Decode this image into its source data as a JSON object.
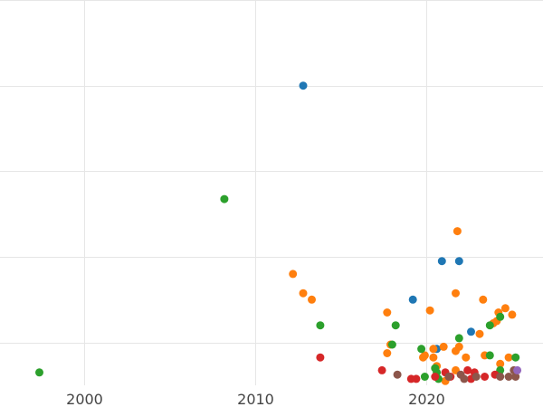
{
  "chart_data": {
    "type": "scatter",
    "title": "",
    "xlabel": "",
    "ylabel": "",
    "xlim": [
      1995.1,
      2026.8
    ],
    "ylim": [
      0,
      9
    ],
    "grid": true,
    "legend": "none",
    "x_ticks": [
      {
        "value": 2000,
        "label": "2000"
      },
      {
        "value": 2010,
        "label": "2010"
      },
      {
        "value": 2020,
        "label": "2020"
      }
    ],
    "y_gridlines": [
      1.0,
      3.0,
      5.0,
      7.0,
      9.0
    ],
    "series": [
      {
        "name": "blue",
        "color": "#1f77b4",
        "points": [
          {
            "x": 2012.8,
            "y": 7.0
          },
          {
            "x": 2019.2,
            "y": 2.0
          },
          {
            "x": 2020.6,
            "y": 0.85
          },
          {
            "x": 2020.9,
            "y": 2.9
          },
          {
            "x": 2021.9,
            "y": 2.9
          },
          {
            "x": 2022.6,
            "y": 1.25
          }
        ]
      },
      {
        "name": "orange",
        "color": "#ff7f0e",
        "points": [
          {
            "x": 2012.2,
            "y": 2.6
          },
          {
            "x": 2012.8,
            "y": 2.15
          },
          {
            "x": 2013.3,
            "y": 2.0
          },
          {
            "x": 2017.7,
            "y": 1.7
          },
          {
            "x": 2017.7,
            "y": 0.75
          },
          {
            "x": 2017.9,
            "y": 0.95
          },
          {
            "x": 2019.8,
            "y": 0.65
          },
          {
            "x": 2019.9,
            "y": 0.7
          },
          {
            "x": 2020.2,
            "y": 1.75
          },
          {
            "x": 2020.4,
            "y": 0.85
          },
          {
            "x": 2020.4,
            "y": 0.65
          },
          {
            "x": 2020.6,
            "y": 0.45
          },
          {
            "x": 2021.0,
            "y": 0.9
          },
          {
            "x": 2021.1,
            "y": 0.1
          },
          {
            "x": 2021.7,
            "y": 0.35
          },
          {
            "x": 2021.7,
            "y": 0.8
          },
          {
            "x": 2021.7,
            "y": 2.15
          },
          {
            "x": 2021.8,
            "y": 3.6
          },
          {
            "x": 2021.9,
            "y": 0.9
          },
          {
            "x": 2022.3,
            "y": 0.65
          },
          {
            "x": 2023.1,
            "y": 1.2
          },
          {
            "x": 2023.3,
            "y": 2.0
          },
          {
            "x": 2023.4,
            "y": 0.7
          },
          {
            "x": 2023.9,
            "y": 1.45
          },
          {
            "x": 2024.1,
            "y": 1.5
          },
          {
            "x": 2024.2,
            "y": 1.7
          },
          {
            "x": 2024.3,
            "y": 0.5
          },
          {
            "x": 2024.6,
            "y": 1.8
          },
          {
            "x": 2024.8,
            "y": 0.65
          },
          {
            "x": 2025.0,
            "y": 1.65
          }
        ]
      },
      {
        "name": "green",
        "color": "#2ca02c",
        "points": [
          {
            "x": 1997.4,
            "y": 0.3
          },
          {
            "x": 2008.2,
            "y": 4.35
          },
          {
            "x": 2013.8,
            "y": 1.4
          },
          {
            "x": 2018.0,
            "y": 0.95
          },
          {
            "x": 2018.2,
            "y": 1.4
          },
          {
            "x": 2019.7,
            "y": 0.85
          },
          {
            "x": 2019.9,
            "y": 0.2
          },
          {
            "x": 2020.5,
            "y": 0.4
          },
          {
            "x": 2020.6,
            "y": 0.3
          },
          {
            "x": 2020.7,
            "y": 0.15
          },
          {
            "x": 2021.9,
            "y": 1.1
          },
          {
            "x": 2023.7,
            "y": 1.4
          },
          {
            "x": 2023.7,
            "y": 0.7
          },
          {
            "x": 2024.3,
            "y": 1.6
          },
          {
            "x": 2024.3,
            "y": 0.35
          },
          {
            "x": 2025.2,
            "y": 0.65
          }
        ]
      },
      {
        "name": "red",
        "color": "#d62728",
        "points": [
          {
            "x": 2013.8,
            "y": 0.65
          },
          {
            "x": 2017.4,
            "y": 0.35
          },
          {
            "x": 2019.1,
            "y": 0.15
          },
          {
            "x": 2019.4,
            "y": 0.15
          },
          {
            "x": 2020.5,
            "y": 0.2
          },
          {
            "x": 2021.1,
            "y": 0.3
          },
          {
            "x": 2021.4,
            "y": 0.2
          },
          {
            "x": 2022.4,
            "y": 0.35
          },
          {
            "x": 2022.6,
            "y": 0.15
          },
          {
            "x": 2022.8,
            "y": 0.3
          },
          {
            "x": 2023.4,
            "y": 0.2
          },
          {
            "x": 2024.0,
            "y": 0.25
          }
        ]
      },
      {
        "name": "brown",
        "color": "#8c564b",
        "points": [
          {
            "x": 2018.3,
            "y": 0.25
          },
          {
            "x": 2021.3,
            "y": 0.2
          },
          {
            "x": 2022.0,
            "y": 0.25
          },
          {
            "x": 2022.2,
            "y": 0.15
          },
          {
            "x": 2022.9,
            "y": 0.2
          },
          {
            "x": 2024.3,
            "y": 0.2
          },
          {
            "x": 2024.8,
            "y": 0.2
          },
          {
            "x": 2025.1,
            "y": 0.35
          },
          {
            "x": 2025.2,
            "y": 0.2
          }
        ]
      },
      {
        "name": "purple",
        "color": "#9467bd",
        "points": [
          {
            "x": 2025.3,
            "y": 0.35
          }
        ]
      }
    ]
  }
}
